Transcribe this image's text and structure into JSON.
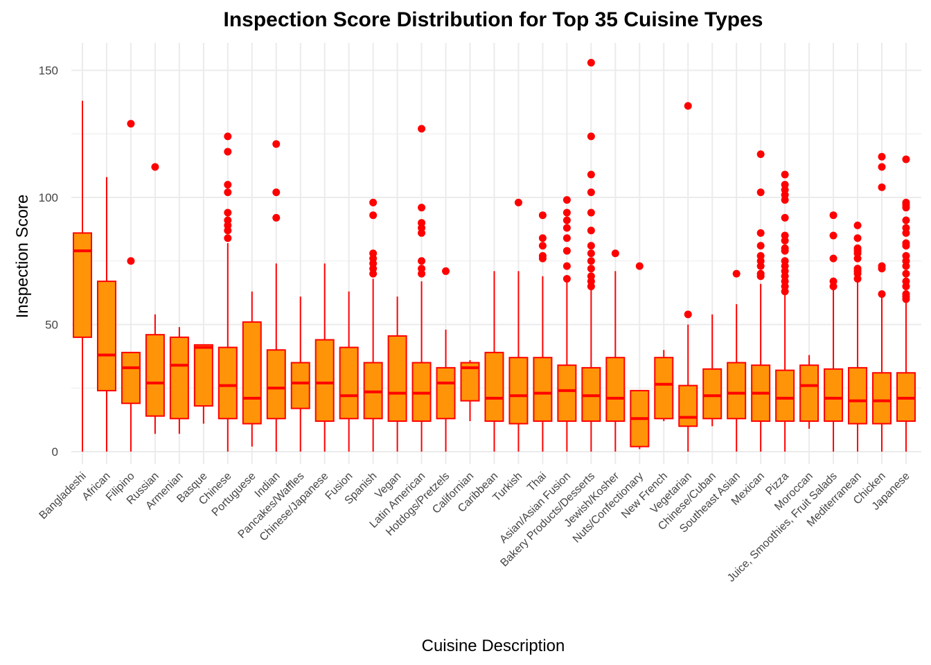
{
  "chart_data": {
    "type": "box",
    "title": "Inspection Score Distribution for Top 35 Cuisine Types",
    "xlabel": "Cuisine Description",
    "ylabel": "Inspection Score",
    "ylim": [
      -7,
      160
    ],
    "yticks": [
      0,
      50,
      100,
      150
    ],
    "grid": true,
    "legend": "none",
    "colors": {
      "fill": "#ff9408",
      "stroke": "#ff0000",
      "outlier": "#ff0000",
      "grid": "#ebebeb"
    },
    "categories": [
      "Bangladeshi",
      "African",
      "Filipino",
      "Russian",
      "Armenian",
      "Basque",
      "Chinese",
      "Portuguese",
      "Indian",
      "Pancakes/Waffles",
      "Chinese/Japanese",
      "Fusion",
      "Spanish",
      "Vegan",
      "Latin American",
      "Hotdogs/Pretzels",
      "Californian",
      "Caribbean",
      "Turkish",
      "Thai",
      "Asian/Asian Fusion",
      "Bakery Products/Desserts",
      "Jewish/Kosher",
      "Nuts/Confectionary",
      "New French",
      "Vegetarian",
      "Chinese/Cuban",
      "Southeast Asian",
      "Mexican",
      "Pizza",
      "Moroccan",
      "Juice, Smoothies, Fruit Salads",
      "Mediterranean",
      "Chicken",
      "Japanese"
    ],
    "boxes": [
      {
        "min": 0,
        "q1": 45,
        "median": 79,
        "q3": 86,
        "max": 138,
        "outliers": []
      },
      {
        "min": 0,
        "q1": 24,
        "median": 38,
        "q3": 67,
        "max": 108,
        "outliers": []
      },
      {
        "min": 0,
        "q1": 19,
        "median": 33,
        "q3": 39,
        "max": 39,
        "outliers": [
          75,
          129
        ]
      },
      {
        "min": 7,
        "q1": 14,
        "median": 27,
        "q3": 46,
        "max": 54,
        "outliers": [
          112
        ]
      },
      {
        "min": 7,
        "q1": 13,
        "median": 34,
        "q3": 45,
        "max": 49,
        "outliers": []
      },
      {
        "min": 11,
        "q1": 18,
        "median": 41,
        "q3": 42,
        "max": 42,
        "outliers": []
      },
      {
        "min": 0,
        "q1": 13,
        "median": 26,
        "q3": 41,
        "max": 82,
        "outliers": [
          84,
          87,
          89,
          91,
          94,
          102,
          105,
          118,
          124
        ]
      },
      {
        "min": 2,
        "q1": 11,
        "median": 21,
        "q3": 51,
        "max": 63,
        "outliers": []
      },
      {
        "min": 0,
        "q1": 13,
        "median": 25,
        "q3": 40,
        "max": 74,
        "outliers": [
          92,
          102,
          121
        ]
      },
      {
        "min": 0,
        "q1": 17,
        "median": 27,
        "q3": 35,
        "max": 61,
        "outliers": []
      },
      {
        "min": 0,
        "q1": 12,
        "median": 27,
        "q3": 44,
        "max": 74,
        "outliers": []
      },
      {
        "min": 0,
        "q1": 13,
        "median": 22,
        "q3": 41,
        "max": 63,
        "outliers": []
      },
      {
        "min": 0,
        "q1": 13,
        "median": 23.5,
        "q3": 35,
        "max": 68,
        "outliers": [
          70,
          72,
          74,
          76,
          78,
          93,
          98
        ]
      },
      {
        "min": 0,
        "q1": 12,
        "median": 23,
        "q3": 45.5,
        "max": 61,
        "outliers": []
      },
      {
        "min": 0,
        "q1": 12,
        "median": 23,
        "q3": 35,
        "max": 67,
        "outliers": [
          70,
          72,
          75,
          86,
          88,
          90,
          96,
          127
        ]
      },
      {
        "min": 0,
        "q1": 13,
        "median": 27,
        "q3": 33,
        "max": 48,
        "outliers": [
          71
        ]
      },
      {
        "min": 12,
        "q1": 20,
        "median": 33,
        "q3": 35,
        "max": 36,
        "outliers": []
      },
      {
        "min": 0,
        "q1": 12,
        "median": 21,
        "q3": 39,
        "max": 71,
        "outliers": []
      },
      {
        "min": 0,
        "q1": 11,
        "median": 22,
        "q3": 37,
        "max": 71,
        "outliers": [
          98
        ]
      },
      {
        "min": 0,
        "q1": 12,
        "median": 23,
        "q3": 37,
        "max": 69,
        "outliers": [
          76,
          77,
          81,
          84,
          93
        ]
      },
      {
        "min": 0,
        "q1": 12,
        "median": 24,
        "q3": 34,
        "max": 67,
        "outliers": [
          68,
          73,
          79,
          84,
          88,
          91,
          94,
          99
        ]
      },
      {
        "min": 0,
        "q1": 12,
        "median": 22,
        "q3": 33,
        "max": 64,
        "outliers": [
          65,
          67,
          69,
          72,
          75,
          78,
          81,
          87,
          94,
          102,
          109,
          124,
          153
        ]
      },
      {
        "min": 0,
        "q1": 12,
        "median": 21,
        "q3": 37,
        "max": 71,
        "outliers": [
          78
        ]
      },
      {
        "min": 1,
        "q1": 2,
        "median": 13,
        "q3": 24,
        "max": 24,
        "outliers": [
          73
        ]
      },
      {
        "min": 12,
        "q1": 13,
        "median": 26.5,
        "q3": 37,
        "max": 40,
        "outliers": []
      },
      {
        "min": 0,
        "q1": 10,
        "median": 13.5,
        "q3": 26,
        "max": 50,
        "outliers": [
          54,
          136
        ]
      },
      {
        "min": 10,
        "q1": 13,
        "median": 22,
        "q3": 32.5,
        "max": 54,
        "outliers": []
      },
      {
        "min": 0,
        "q1": 13,
        "median": 23,
        "q3": 35,
        "max": 58,
        "outliers": [
          70
        ]
      },
      {
        "min": 0,
        "q1": 12,
        "median": 23,
        "q3": 34,
        "max": 66,
        "outliers": [
          69,
          70,
          73,
          75,
          77,
          81,
          86,
          102,
          117
        ]
      },
      {
        "min": 0,
        "q1": 12,
        "median": 21,
        "q3": 32,
        "max": 62,
        "outliers": [
          63,
          65,
          67,
          69,
          71,
          73,
          75,
          79,
          80,
          83,
          85,
          92,
          99,
          101,
          103,
          105,
          109
        ]
      },
      {
        "min": 9,
        "q1": 12,
        "median": 26,
        "q3": 34,
        "max": 38,
        "outliers": []
      },
      {
        "min": 0,
        "q1": 12,
        "median": 21,
        "q3": 32.5,
        "max": 64,
        "outliers": [
          65,
          67,
          76,
          85,
          93
        ]
      },
      {
        "min": 0,
        "q1": 11,
        "median": 20,
        "q3": 33,
        "max": 67,
        "outliers": [
          68,
          70,
          71,
          72,
          76,
          78,
          79,
          80,
          84,
          89
        ]
      },
      {
        "min": 0,
        "q1": 11,
        "median": 20,
        "q3": 31,
        "max": 61,
        "outliers": [
          62,
          72,
          73,
          104,
          112,
          116
        ]
      },
      {
        "min": 0,
        "q1": 12,
        "median": 21,
        "q3": 31,
        "max": 59,
        "outliers": [
          60,
          61,
          62,
          65,
          67,
          70,
          73,
          75,
          77,
          81,
          82,
          86,
          88,
          91,
          96,
          97,
          98,
          115
        ]
      }
    ]
  }
}
